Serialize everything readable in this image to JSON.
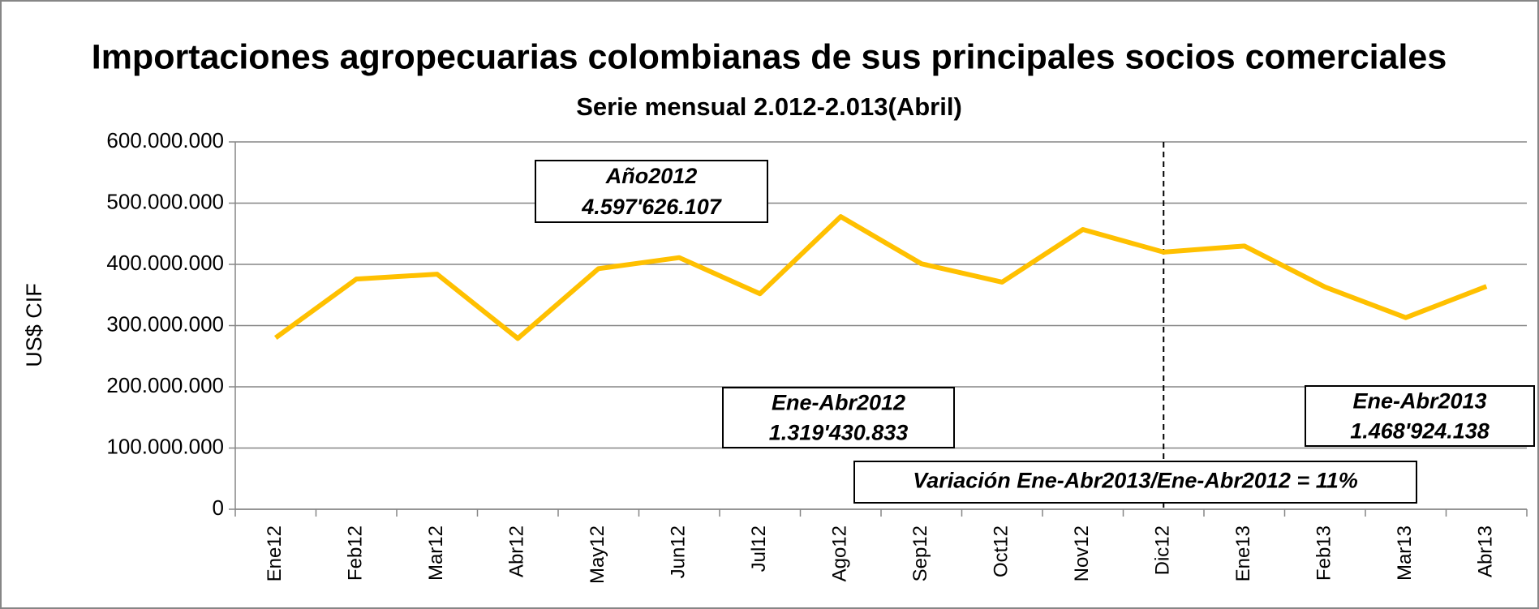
{
  "chart_data": {
    "type": "line",
    "title": "Importaciones agropecuarias colombianas  de sus principales socios comerciales",
    "subtitle": "Serie mensual  2.012-2.013(Abril)",
    "y_axis_label": "US$ CIF",
    "categories": [
      "Ene12",
      "Feb12",
      "Mar12",
      "Abr12",
      "May12",
      "Jun12",
      "Jul12",
      "Ago12",
      "Sep12",
      "Oct12",
      "Nov12",
      "Dic12",
      "Ene13",
      "Feb13",
      "Mar13",
      "Abr13"
    ],
    "series": [
      {
        "name": "US$ CIF",
        "color": "#FFC000",
        "values": [
          280000000,
          376000000,
          384000000,
          279000000,
          393000000,
          411000000,
          352000000,
          478000000,
          401000000,
          371000000,
          457000000,
          420000000,
          430000000,
          363000000,
          313000000,
          364000000
        ]
      }
    ],
    "ylim": [
      0,
      600000000
    ],
    "yticks": [
      0,
      {
        "value": 100000000,
        "label": "100.000.000"
      },
      {
        "value": 200000000,
        "label": "200.000.000"
      },
      {
        "value": 300000000,
        "label": "300.000.000"
      },
      {
        "value": 400000000,
        "label": "400.000.000"
      },
      {
        "value": 500000000,
        "label": "500.000.000"
      },
      {
        "value": 600000000,
        "label": "600.000.000"
      }
    ],
    "grid": true,
    "divider_category": "Dic12",
    "annotations": [
      {
        "lines": [
          "Año2012",
          "4.597'626.107"
        ]
      },
      {
        "lines": [
          "Ene-Abr2012",
          "1.319'430.833"
        ]
      },
      {
        "lines": [
          "Ene-Abr2013",
          "1.468'924.138"
        ]
      },
      {
        "lines": [
          "Variación Ene-Abr2013/Ene-Abr2012 = 11%"
        ]
      }
    ]
  }
}
